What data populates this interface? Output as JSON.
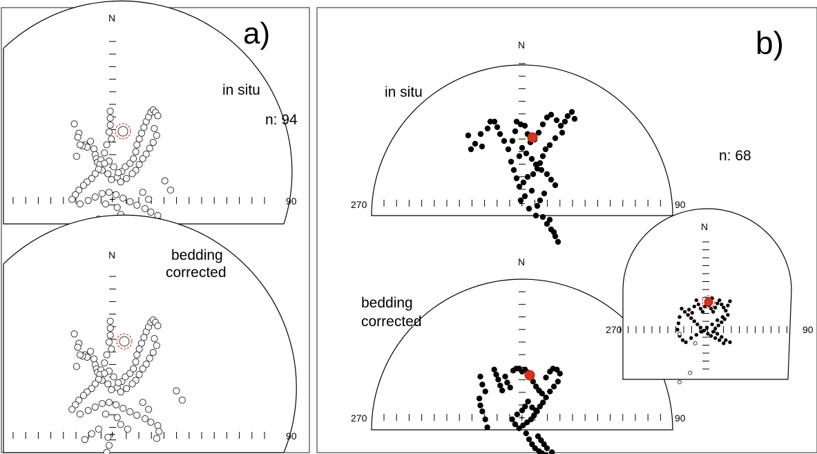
{
  "panel_a": {
    "label": "a)",
    "top": {
      "north": "N",
      "east": "90",
      "mode_label": "in situ",
      "n_label": "n: 94",
      "points": [
        [
          -66,
          108
        ],
        [
          -58,
          92
        ],
        [
          -60,
          85
        ],
        [
          -48,
          72
        ],
        [
          -44,
          68
        ],
        [
          -38,
          78
        ],
        [
          -52,
          70
        ],
        [
          -32,
          65
        ],
        [
          -30,
          55
        ],
        [
          -28,
          48
        ],
        [
          -26,
          42
        ],
        [
          -62,
          52
        ],
        [
          -56,
          72
        ],
        [
          -4,
          130
        ],
        [
          -4,
          118
        ],
        [
          -4,
          106
        ],
        [
          -6,
          94
        ],
        [
          -2,
          82
        ],
        [
          -10,
          72
        ],
        [
          -14,
          58
        ],
        [
          -20,
          46
        ],
        [
          -22,
          38
        ],
        [
          -18,
          28
        ],
        [
          -8,
          22
        ],
        [
          -2,
          12
        ],
        [
          8,
          16
        ],
        [
          16,
          26
        ],
        [
          22,
          34
        ],
        [
          30,
          40
        ],
        [
          36,
          48
        ],
        [
          40,
          60
        ],
        [
          42,
          72
        ],
        [
          46,
          82
        ],
        [
          50,
          92
        ],
        [
          54,
          102
        ],
        [
          58,
          112
        ],
        [
          62,
          120
        ],
        [
          66,
          128
        ],
        [
          70,
          132
        ],
        [
          74,
          128
        ],
        [
          78,
          122
        ],
        [
          72,
          100
        ],
        [
          76,
          88
        ],
        [
          70,
          76
        ],
        [
          64,
          66
        ],
        [
          58,
          56
        ],
        [
          52,
          48
        ],
        [
          46,
          38
        ],
        [
          40,
          28
        ],
        [
          34,
          22
        ],
        [
          24,
          14
        ],
        [
          14,
          8
        ],
        [
          10,
          24
        ],
        [
          2,
          34
        ],
        [
          -6,
          44
        ],
        [
          -14,
          40
        ],
        [
          -24,
          30
        ],
        [
          -30,
          22
        ],
        [
          -36,
          14
        ],
        [
          -44,
          8
        ],
        [
          -50,
          2
        ],
        [
          -58,
          -6
        ],
        [
          -64,
          -14
        ],
        [
          -70,
          -22
        ],
        [
          -56,
          -30
        ],
        [
          -42,
          -24
        ],
        [
          -30,
          -18
        ],
        [
          -18,
          -12
        ],
        [
          -6,
          -10
        ],
        [
          6,
          -14
        ],
        [
          18,
          -20
        ],
        [
          30,
          -26
        ],
        [
          42,
          -32
        ],
        [
          56,
          -38
        ],
        [
          66,
          -44
        ],
        [
          78,
          -50
        ],
        [
          80,
          -60
        ],
        [
          76,
          -72
        ],
        [
          -8,
          -70
        ],
        [
          -6,
          -84
        ],
        [
          -10,
          -96
        ],
        [
          -14,
          -110
        ],
        [
          -18,
          -124
        ],
        [
          90,
          10
        ],
        [
          100,
          -6
        ],
        [
          -24,
          -56
        ],
        [
          -36,
          -64
        ],
        [
          -48,
          -74
        ],
        [
          14,
          -48
        ],
        [
          26,
          -56
        ],
        [
          8,
          -36
        ],
        [
          -12,
          -30
        ],
        [
          62,
          -22
        ],
        [
          52,
          -10
        ]
      ]
    },
    "bottom": {
      "north": "N",
      "east": "90",
      "mode_label_line1": "bedding",
      "mode_label_line2": "corrected",
      "points": [
        [
          -66,
          108
        ],
        [
          -58,
          92
        ],
        [
          -60,
          85
        ],
        [
          -48,
          72
        ],
        [
          -44,
          68
        ],
        [
          -38,
          78
        ],
        [
          -52,
          70
        ],
        [
          -32,
          65
        ],
        [
          -30,
          55
        ],
        [
          -28,
          48
        ],
        [
          -26,
          42
        ],
        [
          -62,
          52
        ],
        [
          -56,
          72
        ],
        [
          -4,
          130
        ],
        [
          -4,
          118
        ],
        [
          -4,
          106
        ],
        [
          -6,
          94
        ],
        [
          -2,
          82
        ],
        [
          -10,
          72
        ],
        [
          -14,
          58
        ],
        [
          -20,
          46
        ],
        [
          -22,
          38
        ],
        [
          -18,
          28
        ],
        [
          -8,
          22
        ],
        [
          -2,
          12
        ],
        [
          8,
          16
        ],
        [
          16,
          26
        ],
        [
          22,
          34
        ],
        [
          30,
          40
        ],
        [
          36,
          48
        ],
        [
          40,
          60
        ],
        [
          42,
          72
        ],
        [
          46,
          82
        ],
        [
          50,
          92
        ],
        [
          54,
          102
        ],
        [
          58,
          112
        ],
        [
          62,
          120
        ],
        [
          66,
          128
        ],
        [
          70,
          132
        ],
        [
          74,
          128
        ],
        [
          78,
          122
        ],
        [
          72,
          100
        ],
        [
          76,
          88
        ],
        [
          70,
          76
        ],
        [
          64,
          66
        ],
        [
          58,
          56
        ],
        [
          52,
          48
        ],
        [
          46,
          38
        ],
        [
          40,
          28
        ],
        [
          34,
          22
        ],
        [
          24,
          14
        ],
        [
          14,
          8
        ],
        [
          10,
          24
        ],
        [
          2,
          34
        ],
        [
          -6,
          44
        ],
        [
          -14,
          40
        ],
        [
          -24,
          30
        ],
        [
          -30,
          22
        ],
        [
          -36,
          14
        ],
        [
          -44,
          8
        ],
        [
          -50,
          2
        ],
        [
          -58,
          -6
        ],
        [
          -64,
          -14
        ],
        [
          -70,
          -22
        ],
        [
          -56,
          -30
        ],
        [
          -42,
          -24
        ],
        [
          -30,
          -18
        ],
        [
          -18,
          -12
        ],
        [
          -6,
          -10
        ],
        [
          6,
          -14
        ],
        [
          18,
          -20
        ],
        [
          30,
          -26
        ],
        [
          42,
          -32
        ],
        [
          56,
          -38
        ],
        [
          66,
          -44
        ],
        [
          78,
          -50
        ],
        [
          80,
          -60
        ],
        [
          76,
          -72
        ],
        [
          -8,
          -70
        ],
        [
          -6,
          -84
        ],
        [
          -10,
          -96
        ],
        [
          -14,
          -110
        ],
        [
          -18,
          -124
        ],
        [
          110,
          10
        ],
        [
          120,
          -6
        ],
        [
          -24,
          -56
        ],
        [
          -36,
          -64
        ],
        [
          -48,
          -74
        ],
        [
          14,
          -48
        ],
        [
          26,
          -56
        ],
        [
          8,
          -36
        ],
        [
          -12,
          -30
        ],
        [
          62,
          -22
        ],
        [
          52,
          -10
        ]
      ]
    }
  },
  "panel_b": {
    "label": "b)",
    "top": {
      "north": "N",
      "west": "270",
      "east": "90",
      "mode_label": "in situ",
      "n_label": "n: 68",
      "points": [
        [
          -78,
          78
        ],
        [
          -74,
          58
        ],
        [
          -68,
          66
        ],
        [
          -60,
          80
        ],
        [
          -58,
          62
        ],
        [
          -50,
          88
        ],
        [
          -46,
          98
        ],
        [
          -40,
          98
        ],
        [
          -36,
          90
        ],
        [
          -32,
          80
        ],
        [
          -26,
          70
        ],
        [
          -20,
          58
        ],
        [
          -14,
          70
        ],
        [
          -10,
          84
        ],
        [
          -8,
          98
        ],
        [
          -2,
          94
        ],
        [
          4,
          92
        ],
        [
          8,
          80
        ],
        [
          12,
          68
        ],
        [
          18,
          72
        ],
        [
          24,
          82
        ],
        [
          30,
          94
        ],
        [
          36,
          104
        ],
        [
          42,
          108
        ],
        [
          50,
          100
        ],
        [
          56,
          92
        ],
        [
          62,
          98
        ],
        [
          66,
          106
        ],
        [
          72,
          112
        ],
        [
          76,
          102
        ],
        [
          58,
          82
        ],
        [
          48,
          74
        ],
        [
          40,
          64
        ],
        [
          34,
          58
        ],
        [
          30,
          48
        ],
        [
          26,
          38
        ],
        [
          22,
          30
        ],
        [
          16,
          22
        ],
        [
          8,
          18
        ],
        [
          2,
          10
        ],
        [
          -4,
          4
        ],
        [
          -8,
          16
        ],
        [
          -12,
          28
        ],
        [
          -16,
          40
        ],
        [
          -4,
          48
        ],
        [
          6,
          52
        ],
        [
          14,
          44
        ],
        [
          20,
          36
        ],
        [
          28,
          28
        ],
        [
          36,
          22
        ],
        [
          42,
          14
        ],
        [
          48,
          6
        ],
        [
          32,
          -6
        ],
        [
          26,
          -16
        ],
        [
          22,
          -24
        ],
        [
          30,
          -40
        ],
        [
          36,
          -50
        ],
        [
          42,
          -58
        ],
        [
          48,
          -68
        ],
        [
          52,
          -76
        ],
        [
          46,
          -62
        ],
        [
          40,
          -44
        ],
        [
          14,
          -2
        ],
        [
          4,
          -10
        ],
        [
          -2,
          -16
        ],
        [
          10,
          -28
        ],
        [
          20,
          -38
        ],
        [
          0,
          60
        ]
      ]
    },
    "bottom": {
      "north": "N",
      "west": "270",
      "east": "90",
      "mode_label_line1": "bedding",
      "mode_label_line2": "corrected",
      "points": [
        [
          -84,
          82
        ],
        [
          -80,
          66
        ],
        [
          -74,
          52
        ],
        [
          -86,
          38
        ],
        [
          -84,
          24
        ],
        [
          -80,
          12
        ],
        [
          -74,
          -4
        ],
        [
          -70,
          -20
        ],
        [
          -56,
          96
        ],
        [
          -52,
          86
        ],
        [
          -48,
          76
        ],
        [
          -44,
          64
        ],
        [
          -40,
          54
        ],
        [
          -34,
          82
        ],
        [
          -30,
          70
        ],
        [
          -24,
          60
        ],
        [
          -18,
          94
        ],
        [
          -12,
          98
        ],
        [
          -6,
          98
        ],
        [
          0,
          92
        ],
        [
          6,
          96
        ],
        [
          12,
          90
        ],
        [
          18,
          82
        ],
        [
          22,
          72
        ],
        [
          28,
          62
        ],
        [
          34,
          54
        ],
        [
          40,
          48
        ],
        [
          48,
          80
        ],
        [
          56,
          92
        ],
        [
          62,
          98
        ],
        [
          70,
          96
        ],
        [
          76,
          88
        ],
        [
          72,
          72
        ],
        [
          64,
          62
        ],
        [
          56,
          52
        ],
        [
          48,
          40
        ],
        [
          42,
          30
        ],
        [
          36,
          22
        ],
        [
          30,
          12
        ],
        [
          24,
          4
        ],
        [
          18,
          -4
        ],
        [
          10,
          -10
        ],
        [
          2,
          -16
        ],
        [
          -6,
          -22
        ],
        [
          -14,
          -14
        ],
        [
          -20,
          -4
        ],
        [
          -10,
          6
        ],
        [
          0,
          14
        ],
        [
          6,
          22
        ],
        [
          12,
          32
        ],
        [
          20,
          20
        ],
        [
          28,
          14
        ],
        [
          8,
          -32
        ],
        [
          14,
          -44
        ],
        [
          20,
          -54
        ],
        [
          26,
          -62
        ],
        [
          34,
          -68
        ],
        [
          40,
          -72
        ],
        [
          48,
          -76
        ],
        [
          56,
          -80
        ],
        [
          62,
          -82
        ],
        [
          68,
          -86
        ],
        [
          72,
          -92
        ],
        [
          60,
          -70
        ],
        [
          50,
          -62
        ],
        [
          44,
          -54
        ],
        [
          38,
          -46
        ],
        [
          32,
          -38
        ]
      ]
    },
    "inset": {
      "north": "N",
      "west": "270",
      "east": "90",
      "points": [
        [
          -32,
          38
        ],
        [
          -26,
          32
        ],
        [
          -22,
          44
        ],
        [
          -18,
          56
        ],
        [
          -14,
          48
        ],
        [
          -10,
          40
        ],
        [
          -6,
          34
        ],
        [
          -2,
          44
        ],
        [
          2,
          52
        ],
        [
          6,
          46
        ],
        [
          10,
          40
        ],
        [
          14,
          34
        ],
        [
          18,
          42
        ],
        [
          22,
          50
        ],
        [
          26,
          56
        ],
        [
          30,
          48
        ],
        [
          34,
          42
        ],
        [
          38,
          36
        ],
        [
          42,
          46
        ],
        [
          46,
          54
        ],
        [
          42,
          28
        ],
        [
          36,
          20
        ],
        [
          30,
          14
        ],
        [
          24,
          8
        ],
        [
          18,
          2
        ],
        [
          14,
          -4
        ],
        [
          22,
          -8
        ],
        [
          30,
          -14
        ],
        [
          38,
          -20
        ],
        [
          46,
          -24
        ],
        [
          34,
          -26
        ],
        [
          26,
          -20
        ],
        [
          18,
          -16
        ],
        [
          10,
          -12
        ],
        [
          4,
          -8
        ],
        [
          -4,
          -2
        ],
        [
          -10,
          4
        ],
        [
          -16,
          10
        ],
        [
          -22,
          16
        ],
        [
          -28,
          22
        ],
        [
          -34,
          28
        ],
        [
          -40,
          34
        ],
        [
          -46,
          40
        ],
        [
          -50,
          24
        ],
        [
          -52,
          12
        ],
        [
          -54,
          0
        ],
        [
          -50,
          -12
        ],
        [
          -44,
          -20
        ],
        [
          -38,
          -24
        ],
        [
          -28,
          -16
        ],
        [
          -18,
          -10
        ],
        [
          -8,
          -4
        ],
        [
          2,
          4
        ],
        [
          12,
          10
        ],
        [
          22,
          18
        ],
        [
          32,
          24
        ],
        [
          8,
          56
        ],
        [
          12,
          60
        ]
      ],
      "open_points": [
        [
          -50,
          -8
        ],
        [
          -20,
          -26
        ],
        [
          -30,
          -82
        ],
        [
          -50,
          -100
        ]
      ]
    }
  }
}
